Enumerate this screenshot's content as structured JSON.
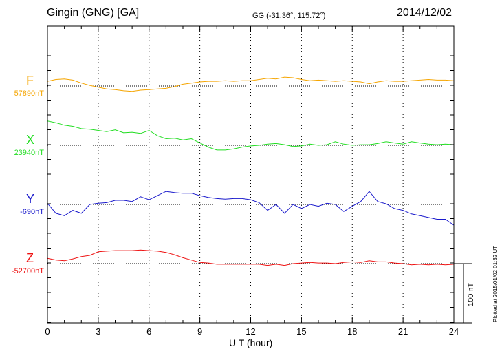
{
  "header": {
    "station": "Gingin (GNG)  [GA]",
    "coords": "GG (-31.36°, 115.72°)",
    "date": "2014/12/02"
  },
  "footer": {
    "plotted": "Plotted at 2015/01/02 01:32 UT",
    "scale_label": "100 nT"
  },
  "chart_data": {
    "type": "line",
    "title": "Gingin (GNG)  [GA]",
    "xlabel": "U T (hour)",
    "xlim": [
      0,
      24
    ],
    "xticks": [
      "0",
      "3",
      "6",
      "9",
      "12",
      "15",
      "18",
      "21",
      "24"
    ],
    "grid": true,
    "scale_bar_nT": 100,
    "series": [
      {
        "name": "F",
        "baseline_label": "57890nT",
        "baseline_nT": 57890,
        "color": "#f5a500",
        "x": [
          0,
          0.5,
          1,
          1.5,
          2,
          2.5,
          3,
          3.5,
          4,
          4.5,
          5,
          5.5,
          6,
          6.5,
          7,
          7.5,
          8,
          8.5,
          9,
          9.5,
          10,
          10.5,
          11,
          11.5,
          12,
          12.5,
          13,
          13.5,
          14,
          14.5,
          15,
          15.5,
          16,
          16.5,
          17,
          17.5,
          18,
          18.5,
          19,
          19.5,
          20,
          20.5,
          21,
          21.5,
          22,
          22.5,
          23,
          23.5,
          24
        ],
        "y": [
          57898,
          57901,
          57902,
          57900,
          57895,
          57891,
          57888,
          57885,
          57884,
          57882,
          57881,
          57883,
          57884,
          57885,
          57886,
          57889,
          57893,
          57895,
          57897,
          57898,
          57898,
          57899,
          57898,
          57899,
          57899,
          57901,
          57903,
          57902,
          57905,
          57904,
          57901,
          57899,
          57900,
          57899,
          57898,
          57899,
          57898,
          57897,
          57894,
          57897,
          57899,
          57898,
          57898,
          57899,
          57900,
          57901,
          57900,
          57900,
          57899
        ]
      },
      {
        "name": "X",
        "baseline_label": "23940nT",
        "baseline_nT": 23940,
        "color": "#22dd22",
        "x": [
          0,
          0.5,
          1,
          1.5,
          2,
          2.5,
          3,
          3.5,
          4,
          4.5,
          5,
          5.5,
          6,
          6.5,
          7,
          7.5,
          8,
          8.5,
          9,
          9.5,
          10,
          10.5,
          11,
          11.5,
          12,
          12.5,
          13,
          13.5,
          14,
          14.5,
          15,
          15.5,
          16,
          16.5,
          17,
          17.5,
          18,
          18.5,
          19,
          19.5,
          20,
          20.5,
          21,
          21.5,
          22,
          22.5,
          23,
          23.5,
          24
        ],
        "y": [
          23981,
          23978,
          23974,
          23972,
          23968,
          23967,
          23965,
          23963,
          23966,
          23961,
          23962,
          23960,
          23965,
          23956,
          23951,
          23952,
          23949,
          23951,
          23944,
          23937,
          23932,
          23932,
          23934,
          23937,
          23939,
          23940,
          23942,
          23943,
          23941,
          23938,
          23939,
          23942,
          23940,
          23941,
          23946,
          23942,
          23940,
          23941,
          23941,
          23943,
          23946,
          23944,
          23942,
          23946,
          23944,
          23942,
          23941,
          23942,
          23941
        ]
      },
      {
        "name": "Y",
        "baseline_label": "-690nT",
        "baseline_nT": -690,
        "color": "#1a1acc",
        "x": [
          0,
          0.5,
          1,
          1.5,
          2,
          2.5,
          3,
          3.5,
          4,
          4.5,
          5,
          5.5,
          6,
          6.5,
          7,
          7.5,
          8,
          8.5,
          9,
          9.5,
          10,
          10.5,
          11,
          11.5,
          12,
          12.5,
          13,
          13.5,
          14,
          14.5,
          15,
          15.5,
          16,
          16.5,
          17,
          17.5,
          18,
          18.5,
          19,
          19.5,
          20,
          20.5,
          21,
          21.5,
          22,
          22.5,
          23,
          23.5,
          24
        ],
        "y": [
          -688,
          -705,
          -709,
          -700,
          -705,
          -690,
          -688,
          -687,
          -683,
          -683,
          -685,
          -677,
          -682,
          -675,
          -668,
          -670,
          -671,
          -671,
          -675,
          -678,
          -680,
          -681,
          -680,
          -680,
          -682,
          -687,
          -700,
          -690,
          -705,
          -690,
          -697,
          -690,
          -693,
          -688,
          -690,
          -702,
          -693,
          -685,
          -668,
          -685,
          -689,
          -697,
          -700,
          -706,
          -709,
          -712,
          -715,
          -715,
          -725
        ]
      },
      {
        "name": "Z",
        "baseline_label": "-52700nT",
        "baseline_nT": -52700,
        "color": "#ee1111",
        "x": [
          0,
          0.5,
          1,
          1.5,
          2,
          2.5,
          3,
          3.5,
          4,
          4.5,
          5,
          5.5,
          6,
          6.5,
          7,
          7.5,
          8,
          8.5,
          9,
          9.5,
          10,
          10.5,
          11,
          11.5,
          12,
          12.5,
          13,
          13.5,
          14,
          14.5,
          15,
          15.5,
          16,
          16.5,
          17,
          17.5,
          18,
          18.5,
          19,
          19.5,
          20,
          20.5,
          21,
          21.5,
          22,
          22.5,
          23,
          23.5,
          24
        ],
        "y": [
          -52691,
          -52694,
          -52695,
          -52692,
          -52688,
          -52686,
          -52680,
          -52679,
          -52678,
          -52678,
          -52678,
          -52677,
          -52678,
          -52679,
          -52681,
          -52685,
          -52690,
          -52694,
          -52698,
          -52699,
          -52701,
          -52701,
          -52701,
          -52701,
          -52701,
          -52701,
          -52703,
          -52701,
          -52703,
          -52700,
          -52699,
          -52698,
          -52699,
          -52699,
          -52700,
          -52698,
          -52697,
          -52698,
          -52695,
          -52697,
          -52697,
          -52699,
          -52700,
          -52702,
          -52701,
          -52702,
          -52701,
          -52702,
          -52701
        ]
      }
    ]
  }
}
